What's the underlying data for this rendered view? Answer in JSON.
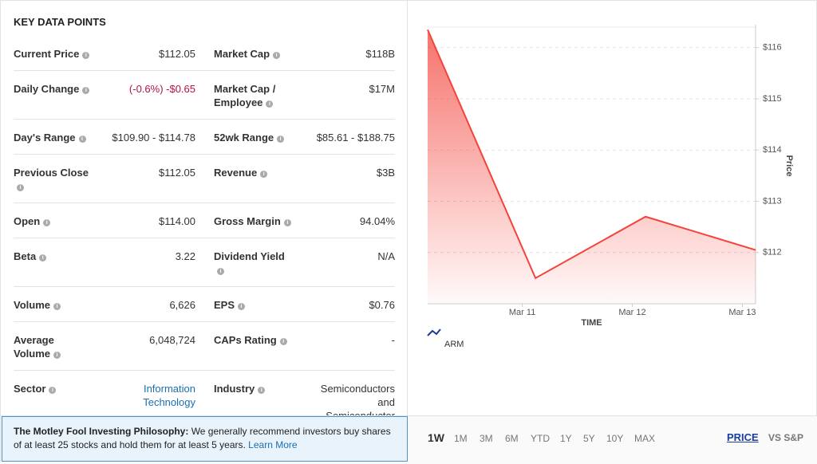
{
  "key_data": {
    "title": "KEY DATA POINTS",
    "rows": [
      [
        {
          "label": "Current Price",
          "value": "$112.05"
        },
        {
          "label": "Market Cap",
          "value": "$118B"
        }
      ],
      [
        {
          "label": "Daily Change",
          "value": "(-0.6%) -$0.65"
        },
        {
          "label": "Market Cap / Employee",
          "value": "$17M"
        }
      ],
      [
        {
          "label": "Day's Range",
          "value": "$109.90 - $114.78"
        },
        {
          "label": "52wk Range",
          "value": "$85.61 - $188.75"
        }
      ],
      [
        {
          "label": "Previous Close",
          "value": "$112.05"
        },
        {
          "label": "Revenue",
          "value": "$3B"
        }
      ],
      [
        {
          "label": "Open",
          "value": "$114.00"
        },
        {
          "label": "Gross Margin",
          "value": "94.04%"
        }
      ],
      [
        {
          "label": "Beta",
          "value": "3.22"
        },
        {
          "label": "Dividend Yield",
          "value": "N/A"
        }
      ],
      [
        {
          "label": "Volume",
          "value": "6,626"
        },
        {
          "label": "EPS",
          "value": "$0.76"
        }
      ],
      [
        {
          "label": "Average Volume",
          "value": "6,048,724"
        },
        {
          "label": "CAPs Rating",
          "value": "-"
        }
      ],
      [
        {
          "label": "Sector",
          "value": "Information Technology"
        },
        {
          "label": "Industry",
          "value": "Semiconductors and Semiconductor Equipment"
        }
      ]
    ]
  },
  "chart_data": {
    "type": "line",
    "x_label": "TIME",
    "y_label": "Price",
    "x": [
      0.14,
      1.12,
      2.12,
      3.12
    ],
    "xlim": [
      0.14,
      3.12
    ],
    "xticks": [
      {
        "value": 1,
        "label": "Mar 11"
      },
      {
        "value": 2,
        "label": "Mar 12"
      },
      {
        "value": 3,
        "label": "Mar 13"
      }
    ],
    "ylim": [
      111,
      116.4
    ],
    "yticks": [
      {
        "value": 112,
        "label": "$112"
      },
      {
        "value": 113,
        "label": "$113"
      },
      {
        "value": 114,
        "label": "$114"
      },
      {
        "value": 115,
        "label": "$115"
      },
      {
        "value": 116,
        "label": "$116"
      }
    ],
    "series": [
      {
        "name": "ARM",
        "color": "#f4433a",
        "values": [
          116.35,
          111.5,
          112.7,
          112.05
        ]
      }
    ],
    "grid": true,
    "legend": "bottom-left"
  },
  "footer": {
    "philosophy": {
      "title": "The Motley Fool Investing Philosophy:",
      "text": "We generally recommend investors buy shares of at least 25 stocks and hold them for at least 5 years.",
      "link": "Learn More"
    },
    "ranges": [
      "1W",
      "1M",
      "3M",
      "6M",
      "YTD",
      "1Y",
      "5Y",
      "10Y",
      "MAX"
    ],
    "active_range": "1W",
    "modes": [
      "PRICE",
      "VS S&P"
    ],
    "active_mode": "PRICE"
  }
}
